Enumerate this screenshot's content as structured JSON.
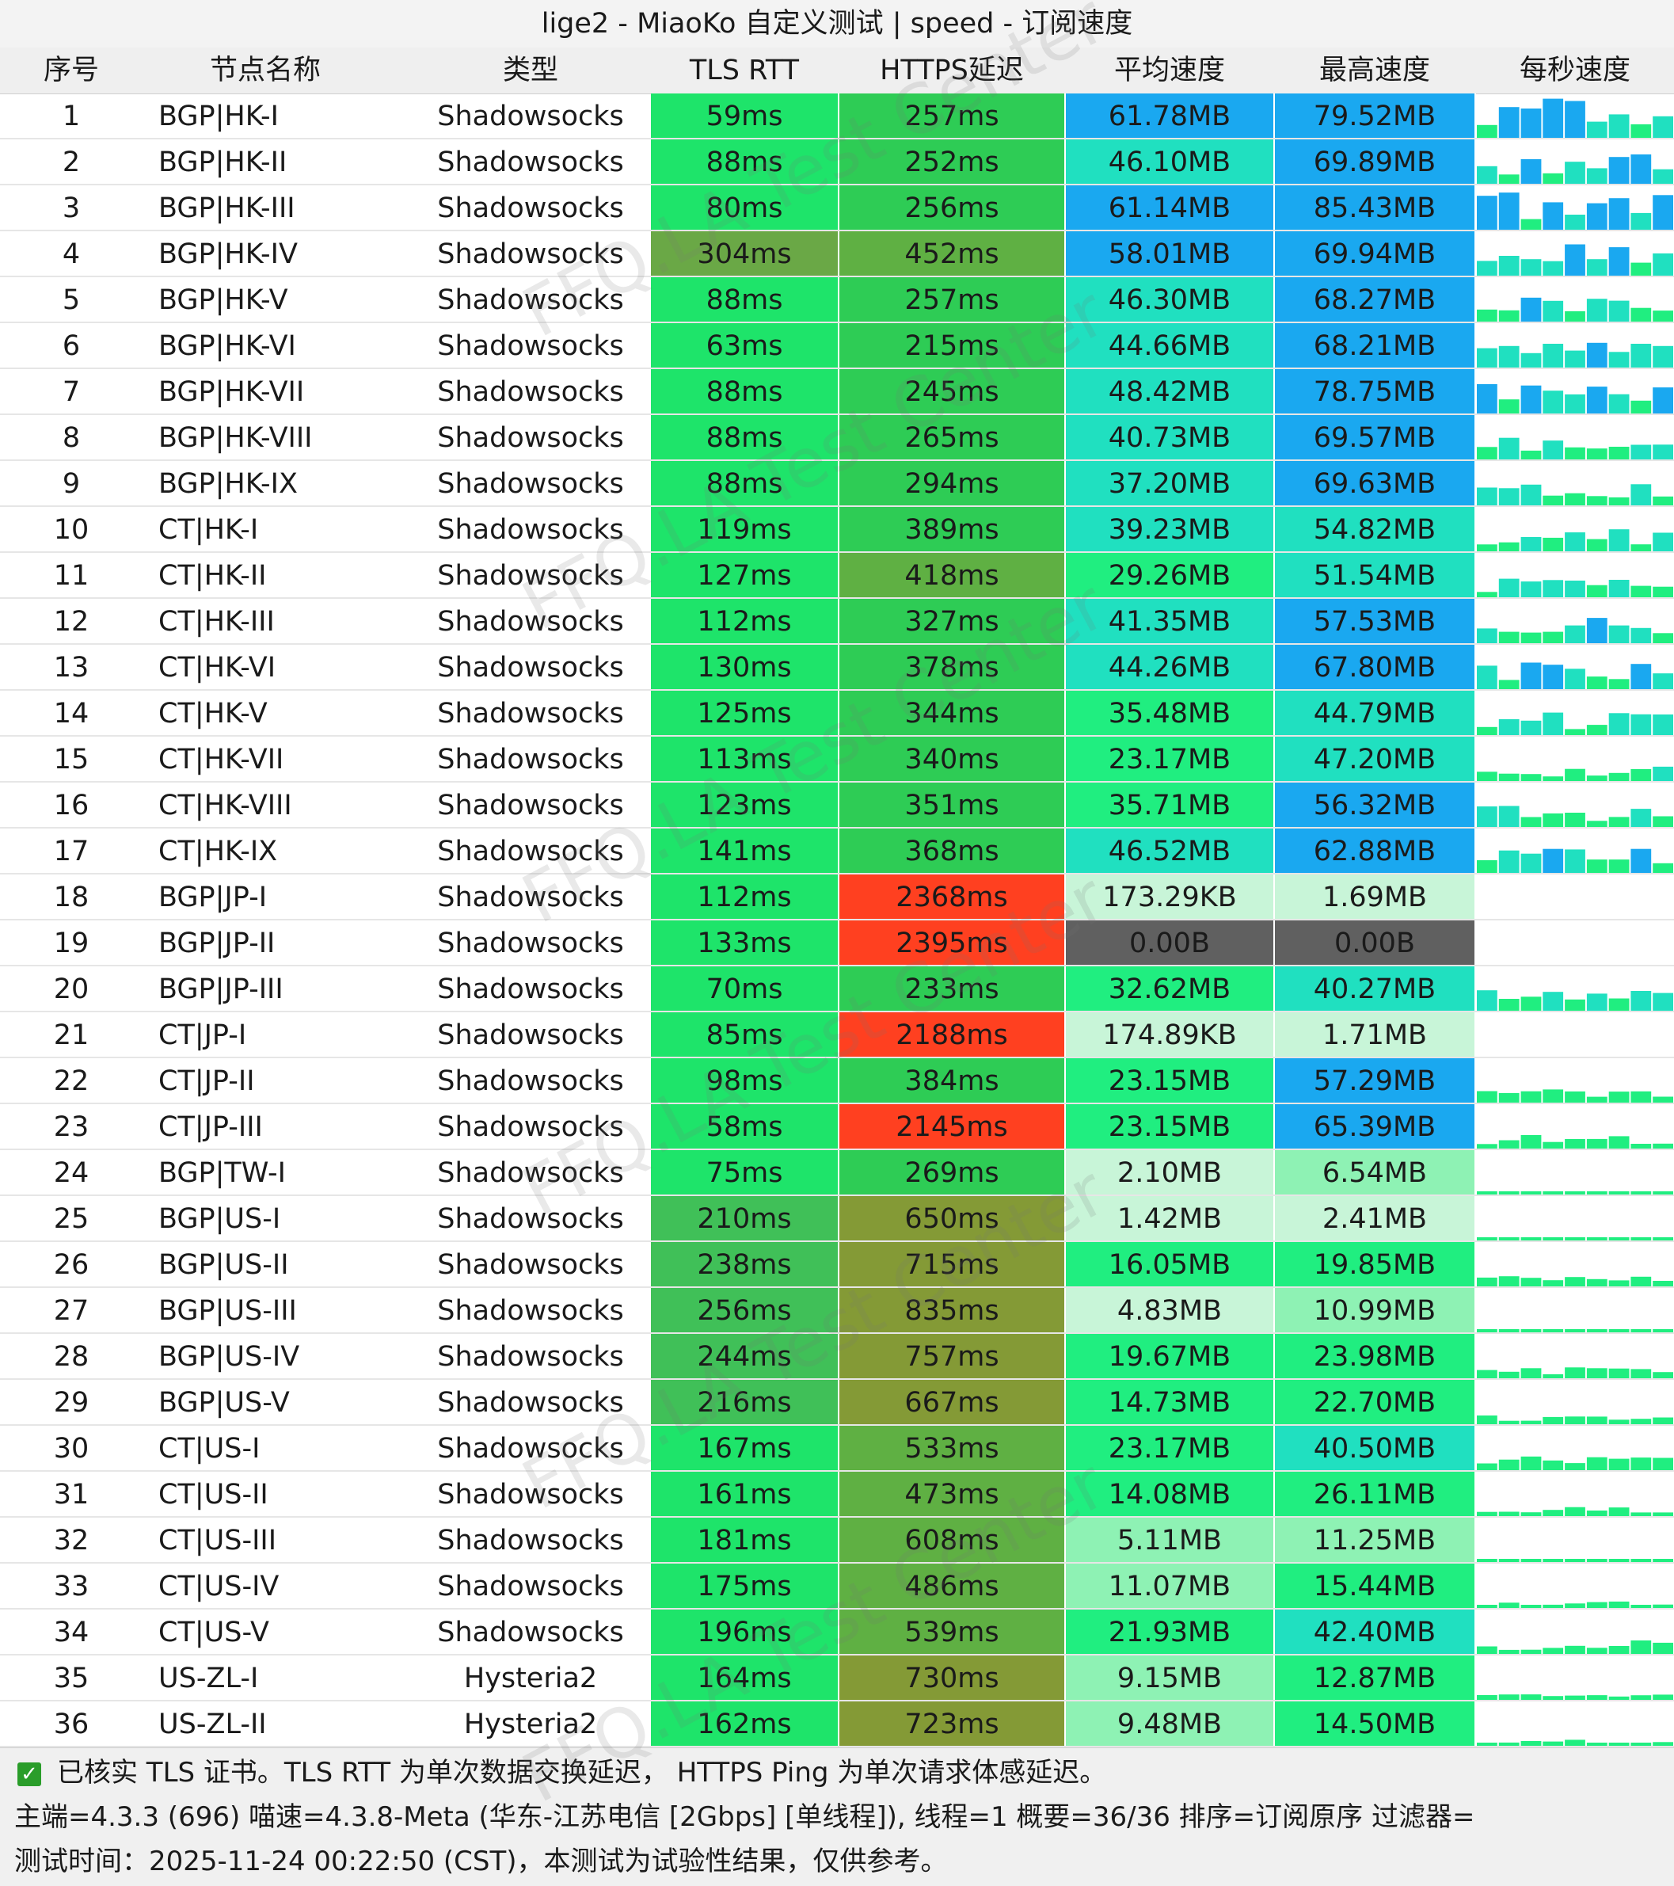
{
  "window": {
    "title": "lige2 - MiaoKo 自定义测试 | speed - 订阅速度"
  },
  "columns": {
    "index": "序号",
    "name": "节点名称",
    "type": "类型",
    "tls_rtt": "TLS RTT",
    "https": "HTTPS延迟",
    "avg": "平均速度",
    "max": "最高速度",
    "per_sec": "每秒速度"
  },
  "rows": [
    {
      "idx": "1",
      "name": "BGP|HK-I",
      "type": "Shadowsocks",
      "tls": "59ms",
      "https": "257ms",
      "avg": "61.78MB",
      "max": "79.52MB"
    },
    {
      "idx": "2",
      "name": "BGP|HK-II",
      "type": "Shadowsocks",
      "tls": "88ms",
      "https": "252ms",
      "avg": "46.10MB",
      "max": "69.89MB"
    },
    {
      "idx": "3",
      "name": "BGP|HK-III",
      "type": "Shadowsocks",
      "tls": "80ms",
      "https": "256ms",
      "avg": "61.14MB",
      "max": "85.43MB"
    },
    {
      "idx": "4",
      "name": "BGP|HK-IV",
      "type": "Shadowsocks",
      "tls": "304ms",
      "https": "452ms",
      "avg": "58.01MB",
      "max": "69.94MB"
    },
    {
      "idx": "5",
      "name": "BGP|HK-V",
      "type": "Shadowsocks",
      "tls": "88ms",
      "https": "257ms",
      "avg": "46.30MB",
      "max": "68.27MB"
    },
    {
      "idx": "6",
      "name": "BGP|HK-VI",
      "type": "Shadowsocks",
      "tls": "63ms",
      "https": "215ms",
      "avg": "44.66MB",
      "max": "68.21MB"
    },
    {
      "idx": "7",
      "name": "BGP|HK-VII",
      "type": "Shadowsocks",
      "tls": "88ms",
      "https": "245ms",
      "avg": "48.42MB",
      "max": "78.75MB"
    },
    {
      "idx": "8",
      "name": "BGP|HK-VIII",
      "type": "Shadowsocks",
      "tls": "88ms",
      "https": "265ms",
      "avg": "40.73MB",
      "max": "69.57MB"
    },
    {
      "idx": "9",
      "name": "BGP|HK-IX",
      "type": "Shadowsocks",
      "tls": "88ms",
      "https": "294ms",
      "avg": "37.20MB",
      "max": "69.63MB"
    },
    {
      "idx": "10",
      "name": "CT|HK-I",
      "type": "Shadowsocks",
      "tls": "119ms",
      "https": "389ms",
      "avg": "39.23MB",
      "max": "54.82MB"
    },
    {
      "idx": "11",
      "name": "CT|HK-II",
      "type": "Shadowsocks",
      "tls": "127ms",
      "https": "418ms",
      "avg": "29.26MB",
      "max": "51.54MB"
    },
    {
      "idx": "12",
      "name": "CT|HK-III",
      "type": "Shadowsocks",
      "tls": "112ms",
      "https": "327ms",
      "avg": "41.35MB",
      "max": "57.53MB"
    },
    {
      "idx": "13",
      "name": "CT|HK-VI",
      "type": "Shadowsocks",
      "tls": "130ms",
      "https": "378ms",
      "avg": "44.26MB",
      "max": "67.80MB"
    },
    {
      "idx": "14",
      "name": "CT|HK-V",
      "type": "Shadowsocks",
      "tls": "125ms",
      "https": "344ms",
      "avg": "35.48MB",
      "max": "44.79MB"
    },
    {
      "idx": "15",
      "name": "CT|HK-VII",
      "type": "Shadowsocks",
      "tls": "113ms",
      "https": "340ms",
      "avg": "23.17MB",
      "max": "47.20MB"
    },
    {
      "idx": "16",
      "name": "CT|HK-VIII",
      "type": "Shadowsocks",
      "tls": "123ms",
      "https": "351ms",
      "avg": "35.71MB",
      "max": "56.32MB"
    },
    {
      "idx": "17",
      "name": "CT|HK-IX",
      "type": "Shadowsocks",
      "tls": "141ms",
      "https": "368ms",
      "avg": "46.52MB",
      "max": "62.88MB"
    },
    {
      "idx": "18",
      "name": "BGP|JP-I",
      "type": "Shadowsocks",
      "tls": "112ms",
      "https": "2368ms",
      "avg": "173.29KB",
      "max": "1.69MB"
    },
    {
      "idx": "19",
      "name": "BGP|JP-II",
      "type": "Shadowsocks",
      "tls": "133ms",
      "https": "2395ms",
      "avg": "0.00B",
      "max": "0.00B"
    },
    {
      "idx": "20",
      "name": "BGP|JP-III",
      "type": "Shadowsocks",
      "tls": "70ms",
      "https": "233ms",
      "avg": "32.62MB",
      "max": "40.27MB"
    },
    {
      "idx": "21",
      "name": "CT|JP-I",
      "type": "Shadowsocks",
      "tls": "85ms",
      "https": "2188ms",
      "avg": "174.89KB",
      "max": "1.71MB"
    },
    {
      "idx": "22",
      "name": "CT|JP-II",
      "type": "Shadowsocks",
      "tls": "98ms",
      "https": "384ms",
      "avg": "23.15MB",
      "max": "57.29MB"
    },
    {
      "idx": "23",
      "name": "CT|JP-III",
      "type": "Shadowsocks",
      "tls": "58ms",
      "https": "2145ms",
      "avg": "23.15MB",
      "max": "65.39MB"
    },
    {
      "idx": "24",
      "name": "BGP|TW-I",
      "type": "Shadowsocks",
      "tls": "75ms",
      "https": "269ms",
      "avg": "2.10MB",
      "max": "6.54MB"
    },
    {
      "idx": "25",
      "name": "BGP|US-I",
      "type": "Shadowsocks",
      "tls": "210ms",
      "https": "650ms",
      "avg": "1.42MB",
      "max": "2.41MB"
    },
    {
      "idx": "26",
      "name": "BGP|US-II",
      "type": "Shadowsocks",
      "tls": "238ms",
      "https": "715ms",
      "avg": "16.05MB",
      "max": "19.85MB"
    },
    {
      "idx": "27",
      "name": "BGP|US-III",
      "type": "Shadowsocks",
      "tls": "256ms",
      "https": "835ms",
      "avg": "4.83MB",
      "max": "10.99MB"
    },
    {
      "idx": "28",
      "name": "BGP|US-IV",
      "type": "Shadowsocks",
      "tls": "244ms",
      "https": "757ms",
      "avg": "19.67MB",
      "max": "23.98MB"
    },
    {
      "idx": "29",
      "name": "BGP|US-V",
      "type": "Shadowsocks",
      "tls": "216ms",
      "https": "667ms",
      "avg": "14.73MB",
      "max": "22.70MB"
    },
    {
      "idx": "30",
      "name": "CT|US-I",
      "type": "Shadowsocks",
      "tls": "167ms",
      "https": "533ms",
      "avg": "23.17MB",
      "max": "40.50MB"
    },
    {
      "idx": "31",
      "name": "CT|US-II",
      "type": "Shadowsocks",
      "tls": "161ms",
      "https": "473ms",
      "avg": "14.08MB",
      "max": "26.11MB"
    },
    {
      "idx": "32",
      "name": "CT|US-III",
      "type": "Shadowsocks",
      "tls": "181ms",
      "https": "608ms",
      "avg": "5.11MB",
      "max": "11.25MB"
    },
    {
      "idx": "33",
      "name": "CT|US-IV",
      "type": "Shadowsocks",
      "tls": "175ms",
      "https": "486ms",
      "avg": "11.07MB",
      "max": "15.44MB"
    },
    {
      "idx": "34",
      "name": "CT|US-V",
      "type": "Shadowsocks",
      "tls": "196ms",
      "https": "539ms",
      "avg": "21.93MB",
      "max": "42.40MB"
    },
    {
      "idx": "35",
      "name": "US-ZL-I",
      "type": "Hysteria2",
      "tls": "164ms",
      "https": "730ms",
      "avg": "9.15MB",
      "max": "12.87MB"
    },
    {
      "idx": "36",
      "name": "US-ZL-II",
      "type": "Hysteria2",
      "tls": "162ms",
      "https": "723ms",
      "avg": "9.48MB",
      "max": "14.50MB"
    }
  ],
  "footer": {
    "line1": "已核实 TLS 证书。TLS RTT 为单次数据交换延迟， HTTPS Ping 为单次请求体感延迟。",
    "line2": "主端=4.3.3 (696) 喵速=4.3.8-Meta (华东-江苏电信 [2Gbps] [单线程]), 线程=1 概要=36/36 排序=订阅原序 过滤器=",
    "line3": "测试时间：2025-11-24 00:22:50 (CST)，本测试为试验性结果，仅供参考。"
  },
  "watermark": "FFQ.LA Test Center",
  "colors": {
    "tls_good": "#1ee46a",
    "tls_mid": "#40c058",
    "tls_slow": "#6aa846",
    "https_fast": "#2ecc55",
    "https_mid": "#5fb043",
    "https_slow": "#849a36",
    "https_bad": "#ff4020",
    "speed_blue": "#1aa8f0",
    "speed_cyan": "#20e0c0",
    "speed_green": "#20ee80",
    "speed_pale": "#c8f5d8",
    "speed_zero": "#606060"
  }
}
